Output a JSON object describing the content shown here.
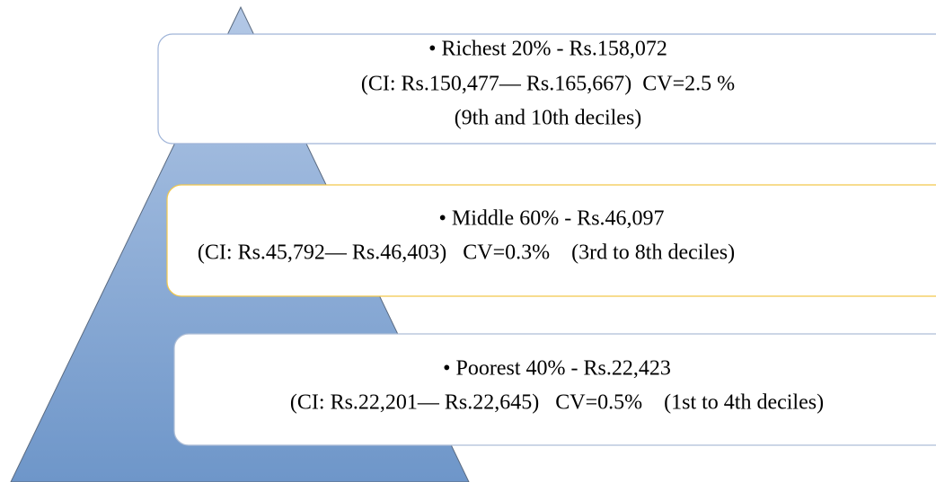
{
  "tiers": [
    {
      "lines": [
        "• Richest 20% - Rs.158,072",
        "(CI: Rs.150,477— Rs.165,667)  CV=2.5 %",
        "(9th and 10th deciles)"
      ]
    },
    {
      "lines": [
        "• Middle 60% - Rs.46,097",
        "(CI: Rs.45,792— Rs.46,403)   CV=0.3%    (3rd to 8th deciles)"
      ]
    },
    {
      "lines": [
        "• Poorest 40% - Rs.22,423",
        "(CI: Rs.22,201— Rs.22,645)   CV=0.5%    (1st to 4th deciles)"
      ]
    }
  ]
}
